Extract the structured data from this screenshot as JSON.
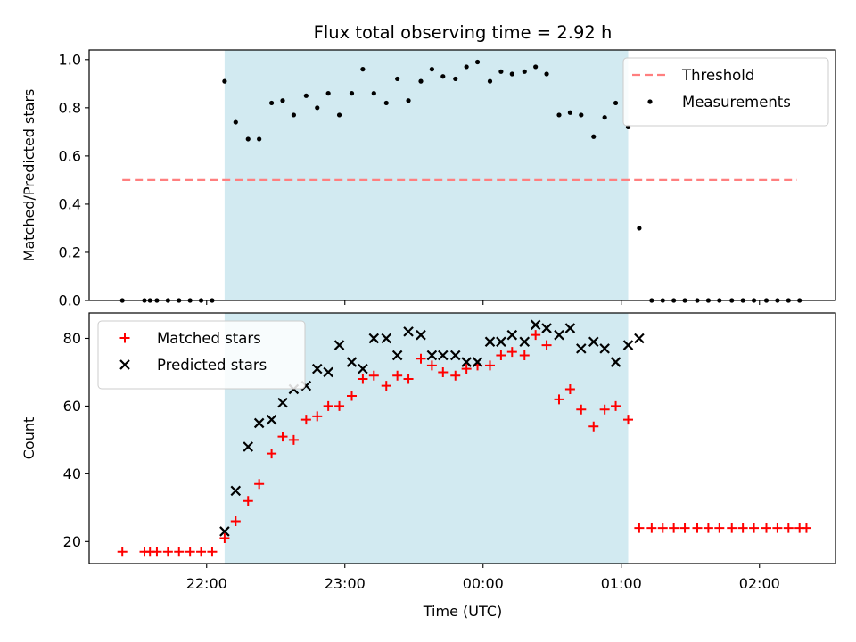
{
  "chart_data": {
    "title": "Flux total observing time = 2.92 h",
    "xlabel": "Time (UTC)",
    "x_unit": "hours UTC (values above 24 are past midnight)",
    "xlim": [
      21.15,
      26.55
    ],
    "xticks": [
      {
        "value": 22,
        "label": "22:00"
      },
      {
        "value": 23,
        "label": "23:00"
      },
      {
        "value": 24,
        "label": "00:00"
      },
      {
        "value": 25,
        "label": "01:00"
      },
      {
        "value": 26,
        "label": "02:00"
      }
    ],
    "shaded_span": {
      "x0": 22.13,
      "x1": 25.05,
      "color": "#add8e6"
    },
    "panels": [
      {
        "id": "ratio",
        "type": "scatter",
        "ylabel": "Matched/Predicted stars",
        "ylim": [
          0,
          1.04
        ],
        "yticks": [
          {
            "value": 0.0,
            "label": "0.0"
          },
          {
            "value": 0.2,
            "label": "0.2"
          },
          {
            "value": 0.4,
            "label": "0.4"
          },
          {
            "value": 0.6,
            "label": "0.6"
          },
          {
            "value": 0.8,
            "label": "0.8"
          },
          {
            "value": 1.0,
            "label": "1.0"
          }
        ],
        "legend_position": "top-right",
        "threshold": {
          "name": "Threshold",
          "value": 0.5,
          "x0": 21.39,
          "x1": 26.27,
          "color": "#ff7f7f"
        },
        "series": [
          {
            "name": "Measurements",
            "marker": "dot",
            "color": "#000000",
            "points": [
              [
                21.39,
                0.0
              ],
              [
                21.55,
                0.0
              ],
              [
                21.59,
                0.0
              ],
              [
                21.64,
                0.0
              ],
              [
                21.72,
                0.0
              ],
              [
                21.8,
                0.0
              ],
              [
                21.88,
                0.0
              ],
              [
                21.96,
                0.0
              ],
              [
                22.04,
                0.0
              ],
              [
                22.13,
                0.91
              ],
              [
                22.21,
                0.74
              ],
              [
                22.3,
                0.67
              ],
              [
                22.38,
                0.67
              ],
              [
                22.47,
                0.82
              ],
              [
                22.55,
                0.83
              ],
              [
                22.63,
                0.77
              ],
              [
                22.72,
                0.85
              ],
              [
                22.8,
                0.8
              ],
              [
                22.88,
                0.86
              ],
              [
                22.96,
                0.77
              ],
              [
                23.05,
                0.86
              ],
              [
                23.13,
                0.96
              ],
              [
                23.21,
                0.86
              ],
              [
                23.3,
                0.82
              ],
              [
                23.38,
                0.92
              ],
              [
                23.46,
                0.83
              ],
              [
                23.55,
                0.91
              ],
              [
                23.63,
                0.96
              ],
              [
                23.71,
                0.93
              ],
              [
                23.8,
                0.92
              ],
              [
                23.88,
                0.97
              ],
              [
                23.96,
                0.99
              ],
              [
                24.05,
                0.91
              ],
              [
                24.13,
                0.95
              ],
              [
                24.21,
                0.94
              ],
              [
                24.3,
                0.95
              ],
              [
                24.38,
                0.97
              ],
              [
                24.46,
                0.94
              ],
              [
                24.55,
                0.77
              ],
              [
                24.63,
                0.78
              ],
              [
                24.71,
                0.77
              ],
              [
                24.8,
                0.68
              ],
              [
                24.88,
                0.76
              ],
              [
                24.96,
                0.82
              ],
              [
                25.05,
                0.72
              ],
              [
                25.13,
                0.3
              ],
              [
                25.22,
                0.0
              ],
              [
                25.3,
                0.0
              ],
              [
                25.38,
                0.0
              ],
              [
                25.46,
                0.0
              ],
              [
                25.55,
                0.0
              ],
              [
                25.63,
                0.0
              ],
              [
                25.71,
                0.0
              ],
              [
                25.8,
                0.0
              ],
              [
                25.88,
                0.0
              ],
              [
                25.96,
                0.0
              ],
              [
                26.05,
                0.0
              ],
              [
                26.13,
                0.0
              ],
              [
                26.21,
                0.0
              ],
              [
                26.29,
                0.0
              ]
            ]
          }
        ]
      },
      {
        "id": "count",
        "type": "scatter",
        "ylabel": "Count",
        "ylim": [
          13.5,
          87.5
        ],
        "yticks": [
          {
            "value": 20,
            "label": "20"
          },
          {
            "value": 40,
            "label": "40"
          },
          {
            "value": 60,
            "label": "60"
          },
          {
            "value": 80,
            "label": "80"
          }
        ],
        "legend_position": "top-left",
        "series": [
          {
            "name": "Matched stars",
            "marker": "plus",
            "color": "#ff0000",
            "points": [
              [
                21.39,
                17
              ],
              [
                21.55,
                17
              ],
              [
                21.59,
                17
              ],
              [
                21.64,
                17
              ],
              [
                21.72,
                17
              ],
              [
                21.8,
                17
              ],
              [
                21.88,
                17
              ],
              [
                21.96,
                17
              ],
              [
                22.04,
                17
              ],
              [
                22.13,
                21
              ],
              [
                22.21,
                26
              ],
              [
                22.3,
                32
              ],
              [
                22.38,
                37
              ],
              [
                22.47,
                46
              ],
              [
                22.55,
                51
              ],
              [
                22.63,
                50
              ],
              [
                22.72,
                56
              ],
              [
                22.8,
                57
              ],
              [
                22.88,
                60
              ],
              [
                22.96,
                60
              ],
              [
                23.05,
                63
              ],
              [
                23.13,
                68
              ],
              [
                23.21,
                69
              ],
              [
                23.3,
                66
              ],
              [
                23.38,
                69
              ],
              [
                23.46,
                68
              ],
              [
                23.55,
                74
              ],
              [
                23.63,
                72
              ],
              [
                23.71,
                70
              ],
              [
                23.8,
                69
              ],
              [
                23.88,
                71
              ],
              [
                23.96,
                72
              ],
              [
                24.05,
                72
              ],
              [
                24.13,
                75
              ],
              [
                24.21,
                76
              ],
              [
                24.3,
                75
              ],
              [
                24.38,
                81
              ],
              [
                24.46,
                78
              ],
              [
                24.55,
                62
              ],
              [
                24.63,
                65
              ],
              [
                24.71,
                59
              ],
              [
                24.8,
                54
              ],
              [
                24.88,
                59
              ],
              [
                24.96,
                60
              ],
              [
                25.05,
                56
              ],
              [
                25.13,
                24
              ],
              [
                25.22,
                24
              ],
              [
                25.3,
                24
              ],
              [
                25.38,
                24
              ],
              [
                25.46,
                24
              ],
              [
                25.55,
                24
              ],
              [
                25.63,
                24
              ],
              [
                25.71,
                24
              ],
              [
                25.8,
                24
              ],
              [
                25.88,
                24
              ],
              [
                25.96,
                24
              ],
              [
                26.05,
                24
              ],
              [
                26.13,
                24
              ],
              [
                26.21,
                24
              ],
              [
                26.29,
                24
              ],
              [
                26.34,
                24
              ]
            ]
          },
          {
            "name": "Predicted stars",
            "marker": "x",
            "color": "#000000",
            "points": [
              [
                22.13,
                23
              ],
              [
                22.21,
                35
              ],
              [
                22.3,
                48
              ],
              [
                22.38,
                55
              ],
              [
                22.47,
                56
              ],
              [
                22.55,
                61
              ],
              [
                22.63,
                65
              ],
              [
                22.72,
                66
              ],
              [
                22.8,
                71
              ],
              [
                22.88,
                70
              ],
              [
                22.96,
                78
              ],
              [
                23.05,
                73
              ],
              [
                23.13,
                71
              ],
              [
                23.21,
                80
              ],
              [
                23.3,
                80
              ],
              [
                23.38,
                75
              ],
              [
                23.46,
                82
              ],
              [
                23.55,
                81
              ],
              [
                23.63,
                75
              ],
              [
                23.71,
                75
              ],
              [
                23.8,
                75
              ],
              [
                23.88,
                73
              ],
              [
                23.96,
                73
              ],
              [
                24.05,
                79
              ],
              [
                24.13,
                79
              ],
              [
                24.21,
                81
              ],
              [
                24.3,
                79
              ],
              [
                24.38,
                84
              ],
              [
                24.46,
                83
              ],
              [
                24.55,
                81
              ],
              [
                24.63,
                83
              ],
              [
                24.71,
                77
              ],
              [
                24.8,
                79
              ],
              [
                24.88,
                77
              ],
              [
                24.96,
                73
              ],
              [
                25.05,
                78
              ],
              [
                25.13,
                80
              ]
            ]
          }
        ]
      }
    ]
  }
}
